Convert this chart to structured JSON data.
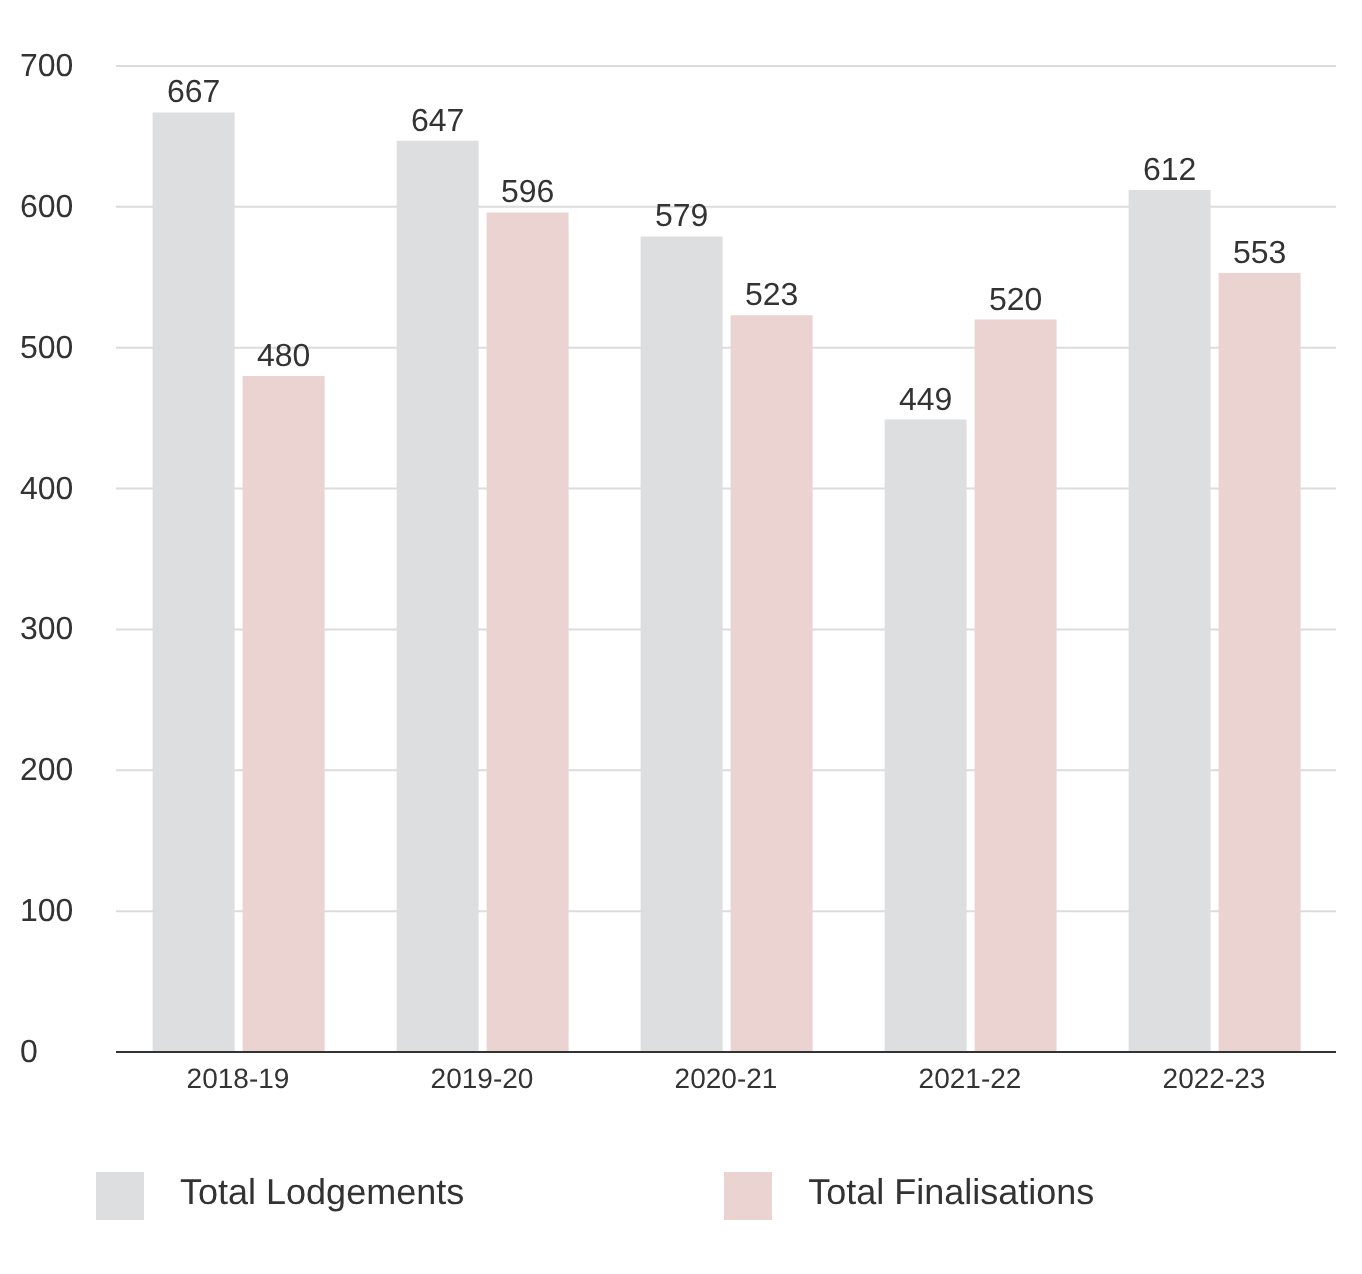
{
  "chart_data": {
    "type": "bar",
    "categories": [
      "2018-19",
      "2019-20",
      "2020-21",
      "2021-22",
      "2022-23"
    ],
    "series": [
      {
        "name": "Total Lodgements",
        "color": "#dddee0",
        "values": [
          667,
          647,
          579,
          449,
          612
        ]
      },
      {
        "name": "Total Finalisations",
        "color": "#ebd3d1",
        "values": [
          480,
          596,
          523,
          520,
          553
        ]
      }
    ],
    "ylim": [
      0,
      700
    ],
    "yticks": [
      0,
      100,
      200,
      300,
      400,
      500,
      600,
      700
    ],
    "grid": "y",
    "legend": "bottom",
    "data_labels": true
  }
}
